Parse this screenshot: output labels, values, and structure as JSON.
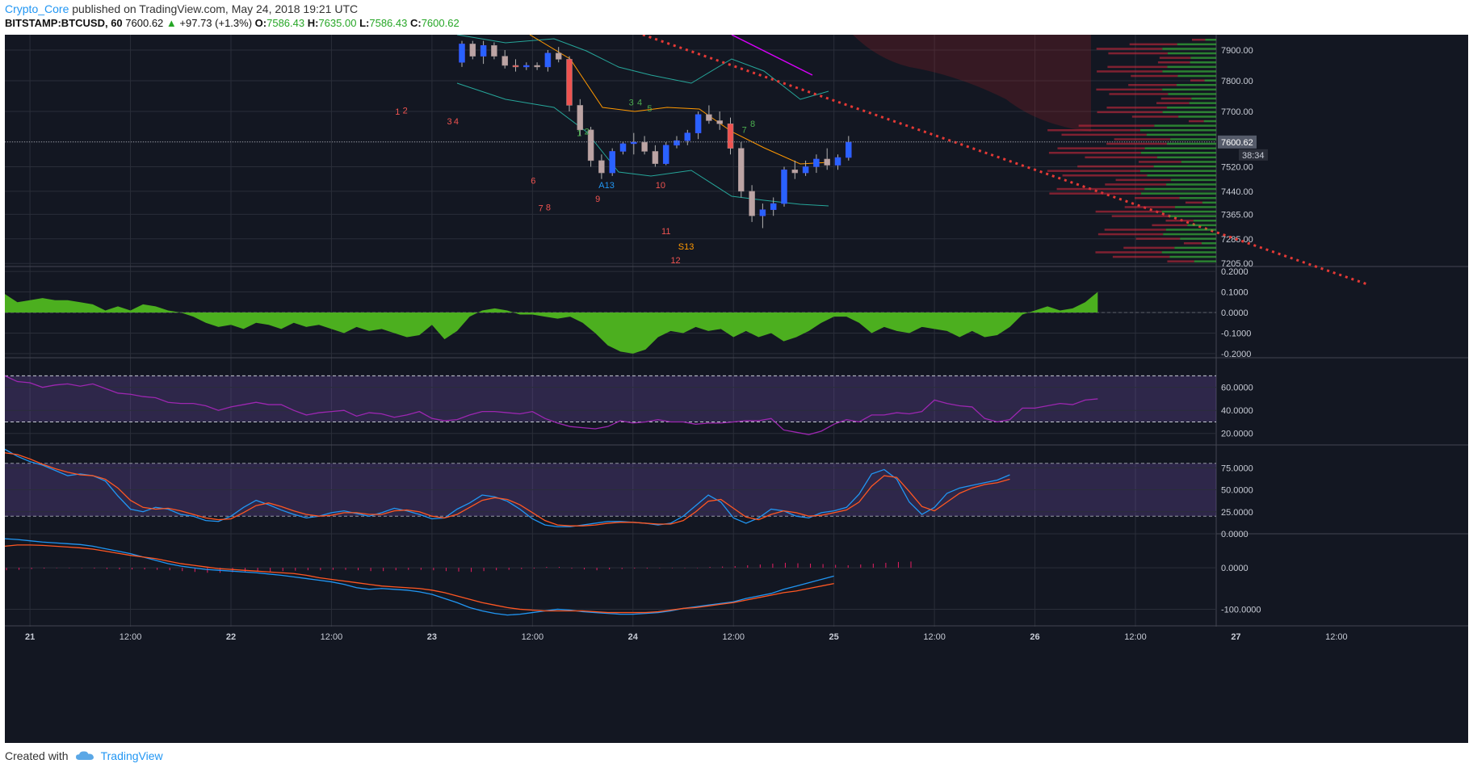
{
  "header": {
    "author": "Crypto_Core",
    "published_text": "published on TradingView.com, May 24, 2018 19:21 UTC",
    "symbol": "BITSTAMP:BTCUSD, 60",
    "last": "7600.62",
    "change": "+97.73 (+1.3%)",
    "o_label": "O:",
    "o": "7586.43",
    "h_label": "H:",
    "h": "7635.00",
    "l_label": "L:",
    "l": "7586.43",
    "c_label": "C:",
    "c": "7600.62"
  },
  "footer": {
    "created_with": "Created with",
    "brand": "TradingView",
    "icon": "tradingview-cloud-icon"
  },
  "colors": {
    "background": "#131722",
    "grid": "#2a2e39",
    "up": "#2962ff",
    "down": "#ef5350",
    "ao": "#4caf1f",
    "rsi": "#9c27b0",
    "stoch_k": "#2196f3",
    "stoch_d": "#ff5722",
    "trendline": "#e53935",
    "band": "#26a69a",
    "bb_mid": "#ff9800",
    "last_tag": "#555b6a"
  },
  "chart_data": [
    {
      "type": "candlestick",
      "name": "price",
      "price_ticks": [
        "7900.00",
        "7800.00",
        "7700.00",
        "7600.62",
        "7520.00",
        "7440.00",
        "7365.00",
        "7285.00",
        "7205.00"
      ],
      "last_price_tag": "7600.62",
      "countdown_tag": "38:34",
      "ylim": [
        7195,
        7950
      ],
      "time_labels": [
        "21",
        "12:00",
        "22",
        "12:00",
        "23",
        "12:00",
        "24",
        "12:00",
        "25",
        "12:00",
        "26",
        "12:00",
        "27",
        "12:00"
      ],
      "xlim_hours": [
        0,
        162
      ],
      "annotations": [
        {
          "text": "1",
          "t": 46.6,
          "p": 7690,
          "color": "#ef5350"
        },
        {
          "text": "2",
          "t": 47.5,
          "p": 7693,
          "color": "#ef5350"
        },
        {
          "text": "3",
          "t": 52.8,
          "p": 7658,
          "color": "#ef5350"
        },
        {
          "text": "4",
          "t": 53.6,
          "p": 7658,
          "color": "#ef5350"
        },
        {
          "text": "7",
          "t": 63.7,
          "p": 7375,
          "color": "#ef5350"
        },
        {
          "text": "8",
          "t": 64.6,
          "p": 7378,
          "color": "#ef5350"
        },
        {
          "text": "6",
          "t": 62.8,
          "p": 7465,
          "color": "#ef5350"
        },
        {
          "text": "9",
          "t": 70.5,
          "p": 7405,
          "color": "#ef5350"
        },
        {
          "text": "10",
          "t": 77.7,
          "p": 7450,
          "color": "#ef5350"
        },
        {
          "text": "11",
          "t": 78.4,
          "p": 7300,
          "color": "#ef5350"
        },
        {
          "text": "12",
          "t": 79.5,
          "p": 7205,
          "color": "#ef5350"
        },
        {
          "text": "A13",
          "t": 70.9,
          "p": 7450,
          "color": "#2196f3"
        },
        {
          "text": "S13",
          "t": 80.4,
          "p": 7250,
          "color": "#ff9800"
        },
        {
          "text": "3",
          "t": 74.5,
          "p": 7720,
          "color": "#4caf50"
        },
        {
          "text": "4",
          "t": 75.5,
          "p": 7720,
          "color": "#4caf50"
        },
        {
          "text": "5",
          "t": 76.7,
          "p": 7700,
          "color": "#4caf50"
        },
        {
          "text": "1",
          "t": 68.3,
          "p": 7620,
          "color": "#4caf50"
        },
        {
          "text": "2",
          "t": 69.2,
          "p": 7625,
          "color": "#4caf50"
        },
        {
          "text": "8",
          "t": 89.0,
          "p": 7650,
          "color": "#4caf50"
        },
        {
          "text": "7",
          "t": 88.0,
          "p": 7630,
          "color": "#4caf50"
        }
      ]
    },
    {
      "type": "area",
      "name": "oscillator",
      "y_ticks": [
        "0.2000",
        "0.1000",
        "0.0000",
        "-0.1000",
        "-0.2000"
      ],
      "ylim": [
        -0.22,
        0.22
      ],
      "t_start": 0,
      "t_step": 1.5,
      "values": [
        0.09,
        0.05,
        0.06,
        0.07,
        0.06,
        0.06,
        0.05,
        0.04,
        0.01,
        0.03,
        0.01,
        0.04,
        0.03,
        0.01,
        0.0,
        -0.02,
        -0.05,
        -0.07,
        -0.06,
        -0.08,
        -0.05,
        -0.06,
        -0.08,
        -0.05,
        -0.07,
        -0.06,
        -0.08,
        -0.1,
        -0.07,
        -0.09,
        -0.08,
        -0.1,
        -0.12,
        -0.11,
        -0.06,
        -0.13,
        -0.09,
        -0.02,
        0.01,
        0.02,
        0.01,
        -0.01,
        -0.01,
        -0.02,
        -0.03,
        -0.02,
        -0.05,
        -0.1,
        -0.16,
        -0.19,
        -0.2,
        -0.18,
        -0.12,
        -0.09,
        -0.1,
        -0.07,
        -0.09,
        -0.08,
        -0.12,
        -0.09,
        -0.12,
        -0.1,
        -0.14,
        -0.12,
        -0.09,
        -0.05,
        -0.02,
        -0.02,
        -0.05,
        -0.1,
        -0.07,
        -0.09,
        -0.1,
        -0.07,
        -0.08,
        -0.09,
        -0.12,
        -0.09,
        -0.12,
        -0.11,
        -0.07,
        -0.01,
        0.01,
        0.03,
        0.01,
        0.02,
        0.05,
        0.1
      ]
    },
    {
      "type": "line",
      "name": "rsi",
      "y_ticks": [
        "60.0000",
        "40.0000",
        "20.0000"
      ],
      "ylim": [
        10,
        85
      ],
      "upper_band": 70,
      "lower_band": 30,
      "t_start": 0,
      "t_step": 1.5,
      "values": [
        70,
        65,
        64,
        60,
        62,
        63,
        61,
        63,
        59,
        55,
        54,
        52,
        51,
        47,
        46,
        46,
        44,
        40,
        43,
        45,
        47,
        45,
        45,
        40,
        36,
        38,
        39,
        40,
        35,
        38,
        37,
        34,
        36,
        39,
        33,
        31,
        32,
        36,
        39,
        39,
        38,
        37,
        39,
        33,
        29,
        26,
        25,
        24,
        26,
        31,
        29,
        30,
        32,
        30,
        30,
        28,
        29,
        29,
        30,
        31,
        31,
        33,
        23,
        21,
        19,
        22,
        28,
        32,
        30,
        36,
        36,
        38,
        37,
        39,
        49,
        46,
        44,
        43,
        33,
        30,
        32,
        42,
        42,
        44,
        46,
        45,
        49,
        50
      ]
    },
    {
      "type": "line",
      "name": "stochastic",
      "y_ticks": [
        "75.0000",
        "50.0000",
        "25.0000",
        "0.0000"
      ],
      "ylim": [
        0,
        100
      ],
      "upper_band": 80,
      "lower_band": 20,
      "t_start": 0,
      "t_step": 1.5,
      "series": [
        {
          "values": [
            96,
            88,
            82,
            78,
            72,
            66,
            68,
            66,
            60,
            43,
            28,
            25,
            30,
            28,
            22,
            20,
            15,
            14,
            20,
            30,
            38,
            33,
            27,
            22,
            18,
            20,
            24,
            26,
            23,
            20,
            24,
            29,
            26,
            22,
            17,
            18,
            28,
            35,
            44,
            42,
            37,
            28,
            17,
            10,
            8,
            8,
            10,
            12,
            14,
            14,
            13,
            12,
            10,
            12,
            20,
            32,
            44,
            36,
            18,
            12,
            18,
            28,
            26,
            20,
            18,
            24,
            26,
            30,
            45,
            68,
            73,
            62,
            36,
            22,
            30,
            46,
            52,
            55,
            58,
            61,
            67
          ]
        },
        {
          "values": [
            92,
            90,
            85,
            79,
            74,
            70,
            67,
            66,
            62,
            52,
            38,
            30,
            28,
            29,
            26,
            22,
            18,
            16,
            17,
            24,
            32,
            35,
            31,
            26,
            22,
            20,
            21,
            24,
            24,
            22,
            22,
            26,
            27,
            25,
            20,
            18,
            22,
            30,
            38,
            41,
            39,
            33,
            24,
            15,
            10,
            9,
            9,
            10,
            12,
            13,
            13,
            12,
            11,
            11,
            15,
            25,
            37,
            39,
            29,
            19,
            16,
            22,
            26,
            24,
            20,
            21,
            24,
            27,
            36,
            54,
            66,
            64,
            48,
            31,
            26,
            36,
            46,
            52,
            56,
            58,
            62
          ]
        }
      ]
    },
    {
      "type": "line",
      "name": "macd",
      "y_ticks": [
        "0.0000",
        "-100.0000"
      ],
      "ylim": [
        -140,
        80
      ],
      "t_start": 0,
      "t_step": 1.5,
      "series": [
        {
          "values": [
            70,
            68,
            65,
            62,
            60,
            58,
            56,
            52,
            46,
            40,
            34,
            26,
            18,
            10,
            4,
            0,
            -4,
            -6,
            -8,
            -10,
            -12,
            -15,
            -18,
            -22,
            -26,
            -30,
            -34,
            -40,
            -48,
            -52,
            -50,
            -52,
            -54,
            -58,
            -64,
            -74,
            -84,
            -96,
            -104,
            -110,
            -114,
            -112,
            -108,
            -104,
            -100,
            -102,
            -106,
            -108,
            -110,
            -112,
            -112,
            -110,
            -108,
            -104,
            -98,
            -94,
            -90,
            -86,
            -82,
            -74,
            -68,
            -62,
            -52,
            -44,
            -36,
            -28,
            -20
          ]
        },
        {
          "values": [
            52,
            55,
            55,
            54,
            52,
            50,
            48,
            45,
            40,
            35,
            30,
            26,
            22,
            16,
            10,
            6,
            2,
            -2,
            -4,
            -6,
            -8,
            -10,
            -12,
            -14,
            -18,
            -24,
            -28,
            -32,
            -36,
            -40,
            -44,
            -46,
            -48,
            -50,
            -54,
            -60,
            -68,
            -76,
            -84,
            -90,
            -96,
            -100,
            -102,
            -104,
            -104,
            -104,
            -104,
            -106,
            -108,
            -108,
            -108,
            -108,
            -106,
            -102,
            -98,
            -96,
            -92,
            -88,
            -84,
            -78,
            -72,
            -66,
            -60,
            -56,
            -50,
            -44,
            -38
          ]
        }
      ],
      "histogram": [
        6,
        5,
        3,
        2,
        1,
        1,
        1,
        2,
        3,
        4,
        4,
        4,
        5,
        6,
        8,
        10,
        12,
        12,
        11,
        10,
        9,
        9,
        8,
        7,
        6,
        6,
        5,
        5,
        6,
        8,
        8,
        6,
        5,
        5,
        6,
        8,
        9,
        10,
        8,
        6,
        5,
        3,
        2,
        -2,
        -2,
        2,
        4,
        6,
        4,
        3,
        2,
        2,
        1,
        1,
        1,
        1,
        2,
        3,
        4,
        6,
        8,
        10,
        12,
        11,
        10,
        9,
        7,
        6,
        8,
        10,
        12,
        14,
        15
      ]
    }
  ]
}
